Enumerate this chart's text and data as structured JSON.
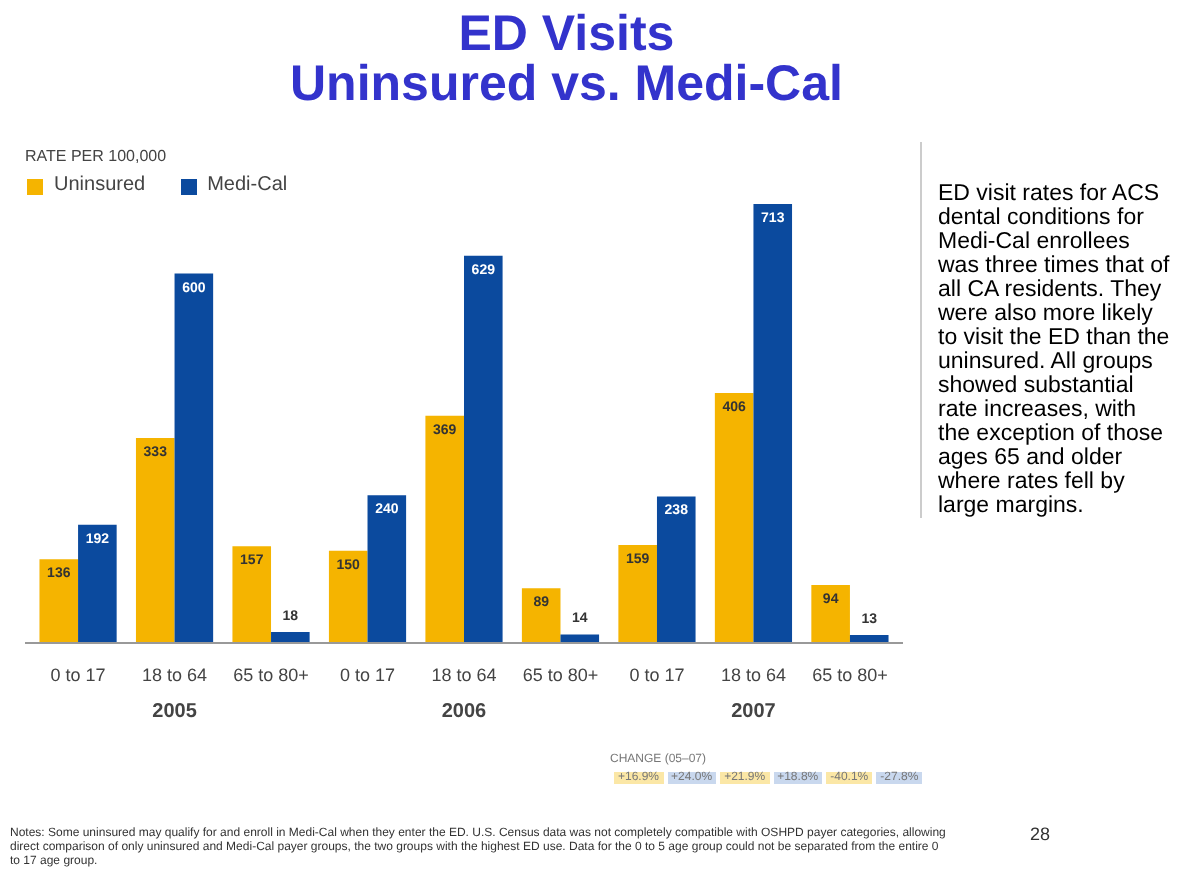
{
  "chart_data": {
    "type": "bar",
    "title": "ED Visits\nUninsured vs. Medi-Cal",
    "ylabel": "RATE PER 100,000",
    "categories": [
      "0 to 17",
      "18 to 64",
      "65 to 80+",
      "0 to 17",
      "18 to 64",
      "65 to 80+",
      "0 to 17",
      "18 to 64",
      "65 to 80+"
    ],
    "series": [
      {
        "name": "Uninsured",
        "color": "#f5b400",
        "values": [
          136,
          333,
          157,
          150,
          369,
          89,
          159,
          406,
          94
        ]
      },
      {
        "name": "Medi-Cal",
        "color": "#0b4a9e",
        "values": [
          192,
          600,
          18,
          240,
          629,
          14,
          238,
          713,
          13
        ]
      }
    ],
    "ylim": [
      0,
      760
    ],
    "data_labels": true,
    "legend": "top left",
    "grid": false,
    "tick_labels": "x",
    "annotations": [
      "2005",
      "2006",
      "2007",
      "CHANGE (05–07)",
      "+16.9%",
      "+24.0%",
      "+21.9%",
      "+18.8%",
      "-40.1%",
      "-27.8%",
      "ED visit rates for ACS dental conditions for Medi-Cal enrollees was three times that of all CA residents. They were also more likely to visit the ED than the uninsured. All groups showed substantial rate increases, with the exception of those ages 65 and older where rates fell by large margins.",
      "Notes: Some uninsured may qualify for and enroll in Medi-Cal when they enter the ED. U.S. Census data was not completely compatible with OSHPD payer categories, allowing direct comparison of only uninsured and Medi-Cal payer groups, the two groups with the highest ED use. Data for the 0 to 5 age group could not be separated from the entire 0 to 17 age group.",
      "28"
    ]
  }
}
